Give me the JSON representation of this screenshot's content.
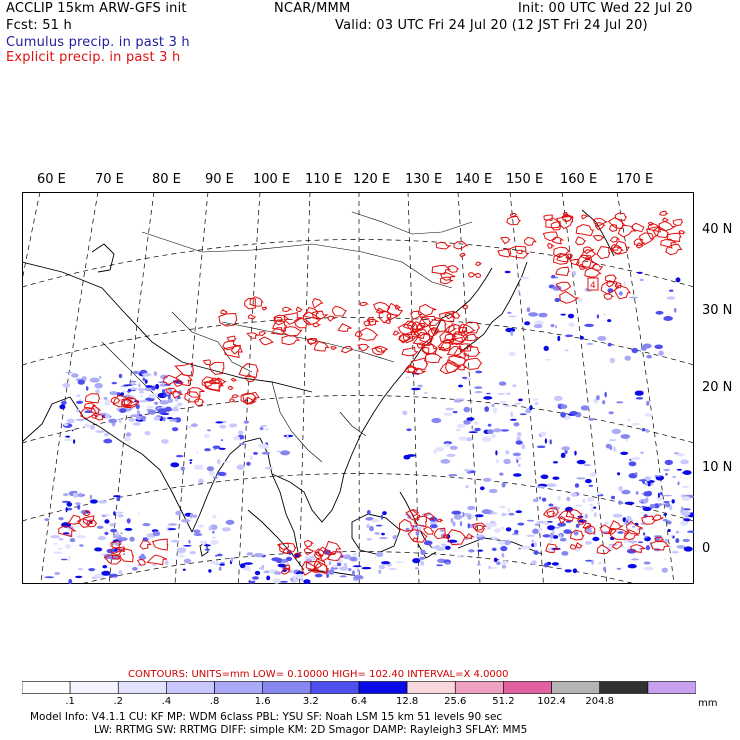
{
  "header": {
    "title_left": "ACCLIP 15km ARW-GFS init",
    "fcst": "Fcst:    51 h",
    "center": "NCAR/MMM",
    "init": "Init: 00 UTC Wed 22 Jul 20",
    "valid": "Valid: 03 UTC Fri 24 Jul 20 (12 JST Fri 24 Jul 20)",
    "cumulus_label": "Cumulus precip. in past 3 h",
    "explicit_label": "Explicit precip. in past 3 h"
  },
  "map": {
    "lon_labels": [
      "60 E",
      "70 E",
      "80 E",
      "90 E",
      "100 E",
      "110 E",
      "120 E",
      "130 E",
      "140 E",
      "150 E",
      "160 E",
      "170 E"
    ],
    "lat_labels": [
      "40 N",
      "30 N",
      "20 N",
      "10 N",
      "0"
    ],
    "marker_label": "4",
    "colors": {
      "cumulus": "#3a3aff",
      "explicit": "#e01010",
      "coast": "#000000",
      "grid": "#000000"
    }
  },
  "contours": {
    "text": "CONTOURS:  UNITS=mm  LOW=  0.10000       HIGH=  102.40       INTERVAL=X  4.0000"
  },
  "colorbar": {
    "levels": [
      ".1",
      ".2",
      ".4",
      ".8",
      "1.6",
      "3.2",
      "6.4",
      "12.8",
      "25.6",
      "51.2",
      "102.4",
      "204.8"
    ],
    "units": "mm",
    "colors": [
      "#ffffff",
      "#f4f4ff",
      "#e2e2ff",
      "#c8c8ff",
      "#aaaaf6",
      "#8686f0",
      "#4f4ff0",
      "#0a0ae6",
      "#f8d8dc",
      "#f0a0c0",
      "#e060a0",
      "#b4b4b4",
      "#303030",
      "#c8a0f0"
    ]
  },
  "footer": {
    "line1": "Model Info: V4.1.1     CU: KF       MP: WDM 6class   PBL: YSU          SF: Noah LSM      15 km    51 levels    90 sec",
    "line2": "LW: RRTMG     SW: RRTMG    DIFF: simple KM: 2D Smagor DAMP: Rayleigh3   SFLAY: MM5"
  }
}
